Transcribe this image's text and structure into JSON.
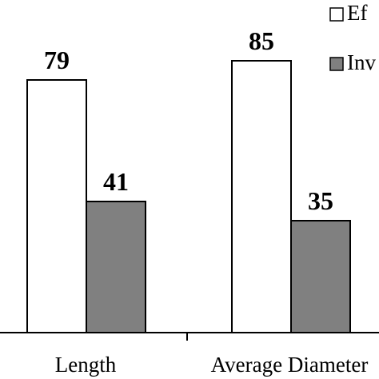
{
  "chart_data": {
    "type": "bar",
    "categories": [
      "Length",
      "Average Diameter"
    ],
    "series": [
      {
        "name": "Ef",
        "values": [
          79,
          85
        ],
        "color": "#ffffff"
      },
      {
        "name": "Inv",
        "values": [
          41,
          35
        ],
        "color": "#808080"
      }
    ],
    "ylim": [
      0,
      100
    ],
    "grid": false,
    "legend_position": "top-right"
  }
}
